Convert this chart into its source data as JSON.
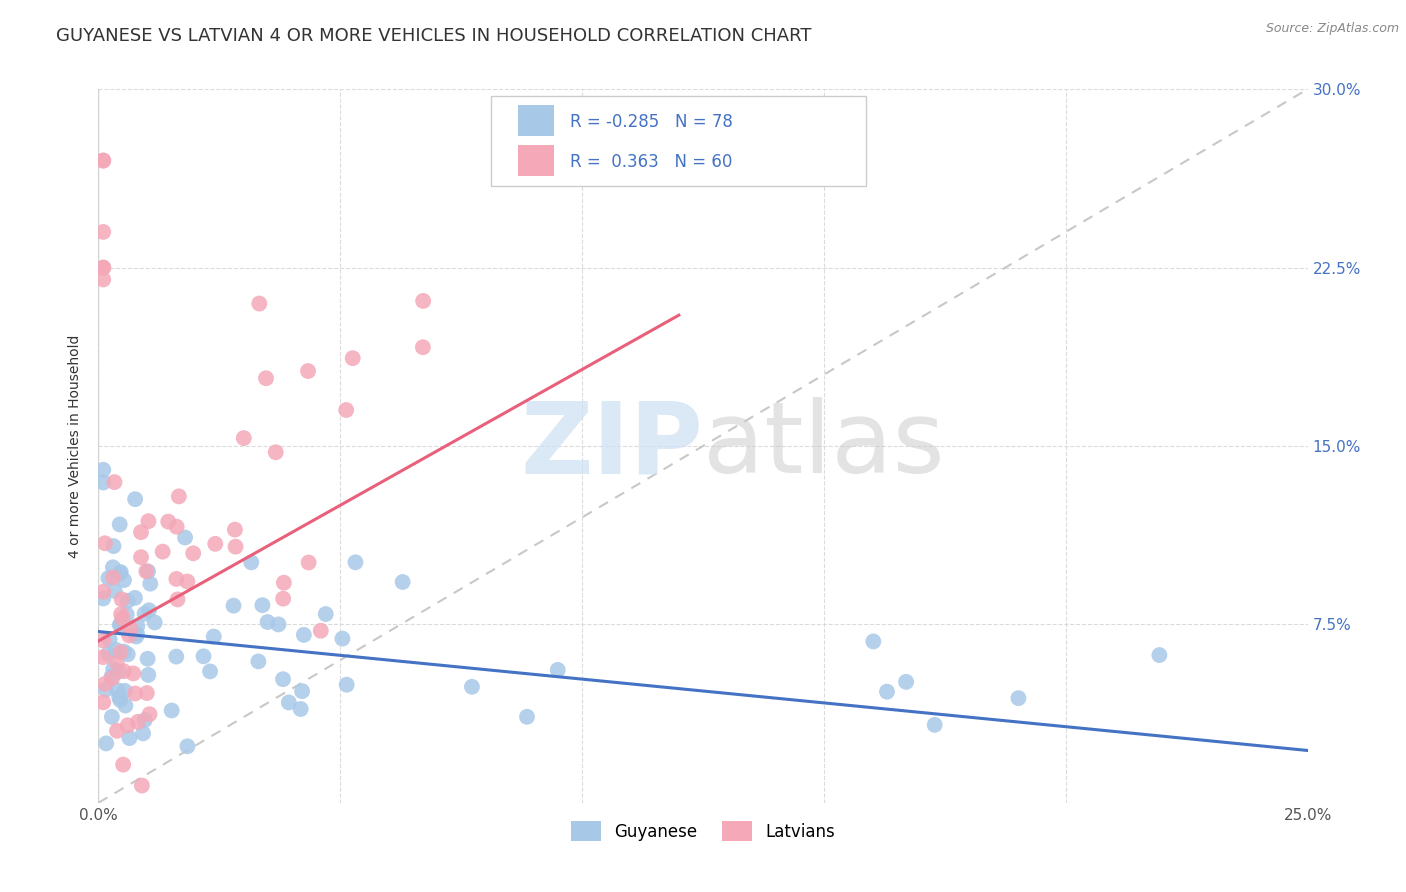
{
  "title": "GUYANESE VS LATVIAN 4 OR MORE VEHICLES IN HOUSEHOLD CORRELATION CHART",
  "source": "Source: ZipAtlas.com",
  "ylabel": "4 or more Vehicles in Household",
  "xlim": [
    0.0,
    0.25
  ],
  "ylim": [
    0.0,
    0.3
  ],
  "xtick_positions": [
    0.0,
    0.05,
    0.1,
    0.15,
    0.2,
    0.25
  ],
  "xticklabels": [
    "0.0%",
    "",
    "",
    "",
    "",
    "25.0%"
  ],
  "ytick_positions": [
    0.0,
    0.075,
    0.15,
    0.225,
    0.3
  ],
  "ytick_labels_right": [
    "",
    "7.5%",
    "15.0%",
    "22.5%",
    "30.0%"
  ],
  "legend_r": [
    -0.285,
    0.363
  ],
  "legend_n": [
    78,
    60
  ],
  "guyanese_color": "#a8c8e8",
  "latvian_color": "#f4a8b8",
  "guyanese_line_color": "#4472c4",
  "latvian_line_color": "#e8607a",
  "diagonal_color": "#c8c8c8",
  "right_tick_color": "#4472c4",
  "grid_color": "#d8d8d8",
  "background_color": "#ffffff",
  "watermark_zip_color": "#cce0f5",
  "watermark_atlas_color": "#cccccc",
  "guyanese_line": [
    [
      0.0,
      0.25
    ],
    [
      0.072,
      0.022
    ]
  ],
  "latvian_line": [
    [
      0.0,
      0.12
    ],
    [
      0.068,
      0.205
    ]
  ],
  "diagonal_line": [
    [
      0.0,
      0.25
    ],
    [
      0.0,
      0.3
    ]
  ]
}
